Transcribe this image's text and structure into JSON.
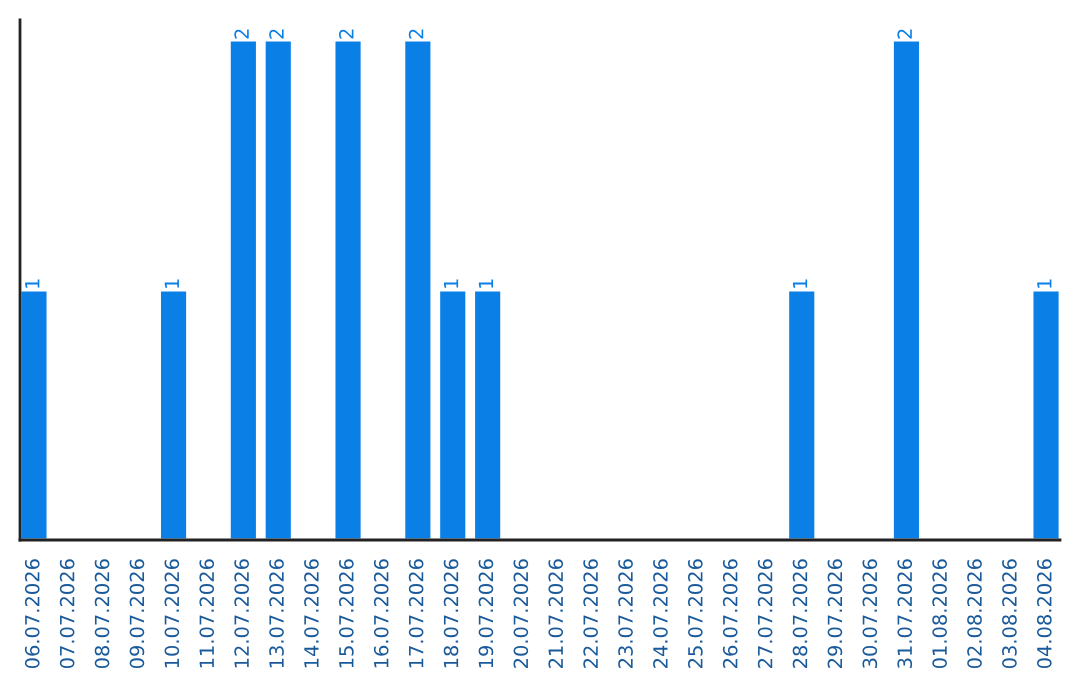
{
  "chart_data": {
    "type": "bar",
    "categories": [
      "06.07.2026",
      "07.07.2026",
      "08.07.2026",
      "09.07.2026",
      "10.07.2026",
      "11.07.2026",
      "12.07.2026",
      "13.07.2026",
      "14.07.2026",
      "15.07.2026",
      "16.07.2026",
      "17.07.2026",
      "18.07.2026",
      "19.07.2026",
      "20.07.2026",
      "21.07.2026",
      "22.07.2026",
      "23.07.2026",
      "24.07.2026",
      "25.07.2026",
      "26.07.2026",
      "27.07.2026",
      "28.07.2026",
      "29.07.2026",
      "30.07.2026",
      "31.07.2026",
      "01.08.2026",
      "02.08.2026",
      "03.08.2026",
      "04.08.2026"
    ],
    "values": [
      1,
      0,
      0,
      0,
      1,
      0,
      2,
      2,
      0,
      2,
      0,
      2,
      1,
      1,
      0,
      0,
      0,
      0,
      0,
      0,
      0,
      0,
      1,
      0,
      0,
      2,
      0,
      0,
      0,
      1
    ],
    "value_labels": [
      "1",
      null,
      null,
      null,
      "1",
      null,
      "2",
      "2",
      null,
      "2",
      null,
      "2",
      "1",
      "1",
      null,
      null,
      null,
      null,
      null,
      null,
      null,
      null,
      "1",
      null,
      null,
      "2",
      null,
      null,
      null,
      "1"
    ],
    "color": "#0a7fe6",
    "ylim": [
      0,
      2.08
    ],
    "tick_labels": "x",
    "grid": false,
    "legend": false
  }
}
